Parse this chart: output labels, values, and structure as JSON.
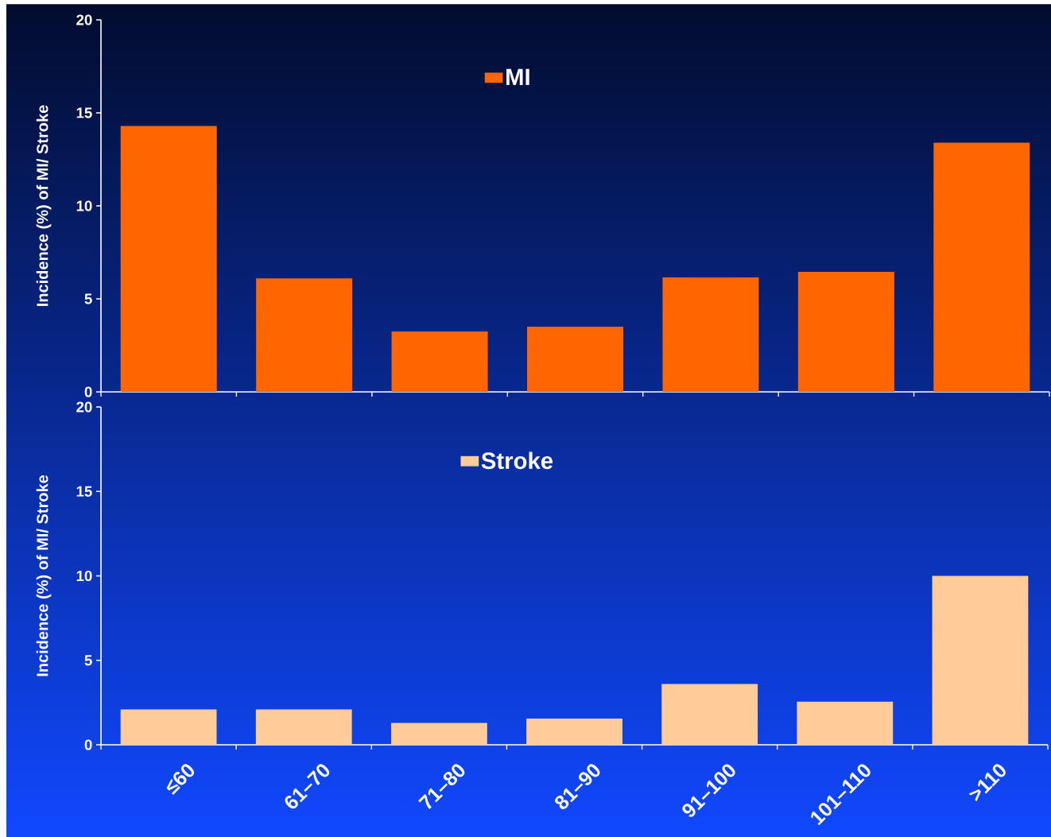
{
  "chart_data": [
    {
      "type": "bar",
      "categories": [
        null,
        null,
        null,
        null,
        null,
        null,
        null
      ],
      "tick_labels": "y",
      "ylabel": "Incidence (%) of MI/ Stroke",
      "ylim": [
        0,
        20
      ],
      "yticks": [
        0,
        5,
        10,
        15,
        20
      ],
      "legend": "top",
      "series": [
        {
          "name": "MI",
          "color": "#ff6600",
          "values": [
            14.3,
            6.1,
            3.25,
            3.5,
            6.15,
            6.45,
            13.4
          ]
        }
      ]
    },
    {
      "type": "bar",
      "categories": [
        "≤60",
        "61–70",
        "71–80",
        "81–90",
        "91–100",
        "101–110",
        ">110"
      ],
      "ylabel": "Incidence (%) of MI/ Stroke",
      "ylim": [
        0,
        20
      ],
      "yticks": [
        0,
        5,
        10,
        15,
        20
      ],
      "legend": "top",
      "series": [
        {
          "name": "Stroke",
          "color": "#ffcc99",
          "values": [
            2.1,
            2.1,
            1.3,
            1.55,
            3.6,
            2.55,
            10.0
          ]
        }
      ]
    }
  ]
}
